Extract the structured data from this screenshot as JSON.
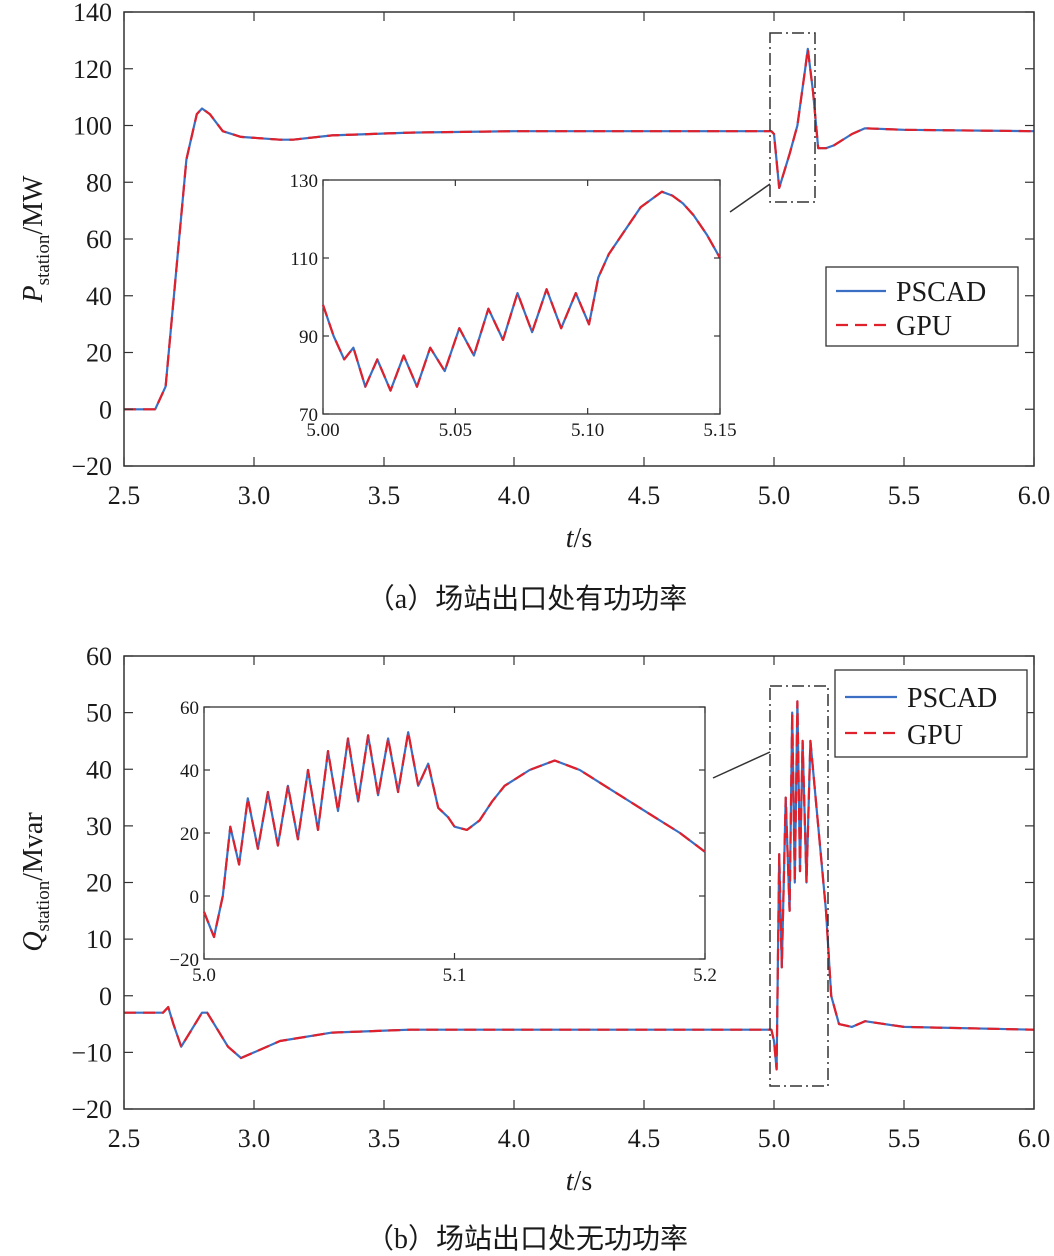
{
  "colors": {
    "PSCAD": "#3a6fc4",
    "GPU": "#e0202a"
  },
  "chart_data": [
    {
      "type": "line",
      "panel": "a",
      "caption": "（a）场站出口处有功功率",
      "ylabel_main": "P",
      "ylabel_sub": "station",
      "ylabel_unit": "/MW",
      "xlabel_italic": "t",
      "xlabel_unit": "/s",
      "xlim": [
        2.5,
        6.0
      ],
      "ylim": [
        -20,
        140
      ],
      "xticks": [
        2.5,
        3.0,
        3.5,
        4.0,
        4.5,
        5.0,
        5.5,
        6.0
      ],
      "xtick_labels": [
        "2.5",
        "3.0",
        "3.5",
        "4.0",
        "4.5",
        "5.0",
        "5.5",
        "6.0"
      ],
      "yticks": [
        -20,
        0,
        20,
        40,
        60,
        80,
        100,
        120,
        140
      ],
      "ytick_labels": [
        "−20",
        "0",
        "20",
        "40",
        "60",
        "80",
        "100",
        "120",
        "140"
      ],
      "legend": {
        "position": "right",
        "entries": [
          "PSCAD",
          "GPU"
        ]
      },
      "series": [
        {
          "name": "PSCAD",
          "style": "solid",
          "x": [
            2.5,
            2.6,
            2.62,
            2.66,
            2.7,
            2.74,
            2.78,
            2.8,
            2.83,
            2.88,
            2.95,
            3.1,
            3.15,
            3.3,
            3.6,
            4.0,
            4.5,
            4.99,
            5.0,
            5.02,
            5.06,
            5.09,
            5.12,
            5.13,
            5.15,
            5.17,
            5.2,
            5.23,
            5.3,
            5.35,
            5.5,
            6.0
          ],
          "y": [
            0,
            0,
            0,
            8,
            48,
            88,
            104,
            106,
            104,
            98,
            96,
            95,
            95,
            96.5,
            97.5,
            98,
            98,
            98,
            97,
            78,
            90,
            100,
            120,
            127,
            112,
            92,
            92,
            93,
            97,
            99,
            98.5,
            98
          ]
        },
        {
          "name": "GPU",
          "style": "dashed",
          "x": [
            2.5,
            2.6,
            2.62,
            2.66,
            2.7,
            2.74,
            2.78,
            2.8,
            2.83,
            2.88,
            2.95,
            3.1,
            3.15,
            3.3,
            3.6,
            4.0,
            4.5,
            4.99,
            5.0,
            5.02,
            5.06,
            5.09,
            5.12,
            5.13,
            5.15,
            5.17,
            5.2,
            5.23,
            5.3,
            5.35,
            5.5,
            6.0
          ],
          "y": [
            0,
            0,
            0,
            8,
            48,
            88,
            104,
            106,
            104,
            98,
            96,
            95,
            95,
            96.5,
            97.5,
            98,
            98,
            98,
            97,
            78,
            90,
            100,
            120,
            127,
            112,
            92,
            92,
            93,
            97,
            99,
            98.5,
            98
          ]
        }
      ],
      "inset": {
        "xlim": [
          5.0,
          5.15
        ],
        "ylim": [
          70,
          130
        ],
        "xticks": [
          5.0,
          5.05,
          5.1,
          5.15
        ],
        "xtick_labels": [
          "5.00",
          "5.05",
          "5.10",
          "5.15"
        ],
        "yticks": [
          70,
          90,
          110,
          130
        ],
        "ytick_labels": [
          "70",
          "90",
          "110",
          "130"
        ],
        "zoom_window": {
          "x": [
            4.99,
            5.165
          ],
          "y": [
            124,
            137
          ]
        },
        "x": [
          5.0,
          5.004,
          5.008,
          5.0115,
          5.016,
          5.0205,
          5.0255,
          5.0305,
          5.0355,
          5.0405,
          5.046,
          5.0515,
          5.057,
          5.0625,
          5.068,
          5.0735,
          5.079,
          5.0845,
          5.09,
          5.0955,
          5.1005,
          5.104,
          5.108,
          5.112,
          5.116,
          5.12,
          5.124,
          5.128,
          5.132,
          5.136,
          5.14,
          5.145,
          5.15
        ],
        "y": [
          98,
          90,
          84,
          87,
          77,
          84,
          76,
          85,
          77,
          87,
          81,
          92,
          85,
          97,
          89,
          101,
          91,
          102,
          92,
          101,
          93,
          105,
          111,
          115,
          119,
          123,
          125,
          127,
          126,
          124,
          121,
          116,
          110
        ]
      }
    },
    {
      "type": "line",
      "panel": "b",
      "caption": "（b）场站出口处无功功率",
      "ylabel_main": "Q",
      "ylabel_sub": "station",
      "ylabel_unit": "/Mvar",
      "xlabel_italic": "t",
      "xlabel_unit": "/s",
      "xlim": [
        2.5,
        6.0
      ],
      "ylim": [
        -20,
        60
      ],
      "xticks": [
        2.5,
        3.0,
        3.5,
        4.0,
        4.5,
        5.0,
        5.5,
        6.0
      ],
      "xtick_labels": [
        "2.5",
        "3.0",
        "3.5",
        "4.0",
        "4.5",
        "5.0",
        "5.5",
        "6.0"
      ],
      "yticks": [
        -20,
        -10,
        0,
        10,
        20,
        30,
        40,
        50,
        60
      ],
      "ytick_labels": [
        "−20",
        "−10",
        "0",
        "10",
        "20",
        "30",
        "40",
        "50",
        "60"
      ],
      "legend": {
        "position": "top-right",
        "entries": [
          "PSCAD",
          "GPU"
        ]
      },
      "series": [
        {
          "name": "PSCAD",
          "style": "solid",
          "x": [
            2.5,
            2.65,
            2.67,
            2.69,
            2.72,
            2.76,
            2.8,
            2.82,
            2.86,
            2.9,
            2.95,
            3.0,
            3.1,
            3.3,
            3.6,
            4.0,
            4.5,
            4.99,
            5.0,
            5.01,
            5.02,
            5.03,
            5.045,
            5.06,
            5.07,
            5.08,
            5.09,
            5.1,
            5.11,
            5.125,
            5.14,
            5.16,
            5.2,
            5.22,
            5.25,
            5.3,
            5.35,
            5.5,
            6.0
          ],
          "y": [
            -3,
            -3,
            -2,
            -5,
            -9,
            -6,
            -3,
            -3,
            -6,
            -9,
            -11,
            -10,
            -8,
            -6.5,
            -6,
            -6,
            -6,
            -6,
            -8,
            -13,
            25,
            5,
            35,
            15,
            50,
            20,
            52,
            22,
            45,
            20,
            45,
            35,
            15,
            0,
            -5,
            -5.5,
            -4.5,
            -5.5,
            -6
          ]
        },
        {
          "name": "GPU",
          "style": "dashed",
          "x": [
            2.5,
            2.65,
            2.67,
            2.69,
            2.72,
            2.76,
            2.8,
            2.82,
            2.86,
            2.9,
            2.95,
            3.0,
            3.1,
            3.3,
            3.6,
            4.0,
            4.5,
            4.99,
            5.0,
            5.01,
            5.02,
            5.03,
            5.045,
            5.06,
            5.07,
            5.08,
            5.09,
            5.1,
            5.11,
            5.125,
            5.14,
            5.16,
            5.2,
            5.22,
            5.25,
            5.3,
            5.35,
            5.5,
            6.0
          ],
          "y": [
            -3,
            -3,
            -2,
            -5,
            -9,
            -6,
            -3,
            -3,
            -6,
            -9,
            -11,
            -10,
            -8,
            -6.5,
            -6,
            -6,
            -6,
            -6,
            -8,
            -13,
            25,
            5,
            35,
            15,
            50,
            20,
            52,
            22,
            45,
            20,
            45,
            35,
            15,
            0,
            -5,
            -5.5,
            -4.5,
            -5.5,
            -6
          ]
        }
      ],
      "inset": {
        "xlim": [
          5.0,
          5.2
        ],
        "ylim": [
          -20,
          60
        ],
        "xticks": [
          5.0,
          5.1,
          5.2
        ],
        "xtick_labels": [
          "5.0",
          "5.1",
          "5.2"
        ],
        "yticks": [
          -20,
          0,
          20,
          40,
          60
        ],
        "ytick_labels": [
          "−20",
          "0",
          "20",
          "40",
          "60"
        ],
        "zoom_window": {
          "x": [
            4.99,
            5.22
          ],
          "y": [
            -16,
            52
          ]
        },
        "x": [
          5.0,
          5.004,
          5.0075,
          5.0105,
          5.014,
          5.0175,
          5.0215,
          5.0255,
          5.0295,
          5.0335,
          5.0375,
          5.0415,
          5.0455,
          5.0495,
          5.0535,
          5.0575,
          5.0615,
          5.0655,
          5.0695,
          5.0735,
          5.0775,
          5.0815,
          5.0855,
          5.0895,
          5.0935,
          5.0975,
          5.1,
          5.105,
          5.11,
          5.115,
          5.12,
          5.13,
          5.14,
          5.15,
          5.16,
          5.17,
          5.18,
          5.19,
          5.2
        ],
        "y": [
          -5,
          -13,
          0,
          22,
          10,
          31,
          15,
          33,
          16,
          35,
          18,
          40,
          21,
          46,
          27,
          50,
          30,
          51,
          32,
          50,
          33,
          52,
          35,
          42,
          28,
          25,
          22,
          21,
          24,
          30,
          35,
          40,
          43,
          40,
          35,
          30,
          25,
          20,
          14
        ]
      }
    }
  ]
}
